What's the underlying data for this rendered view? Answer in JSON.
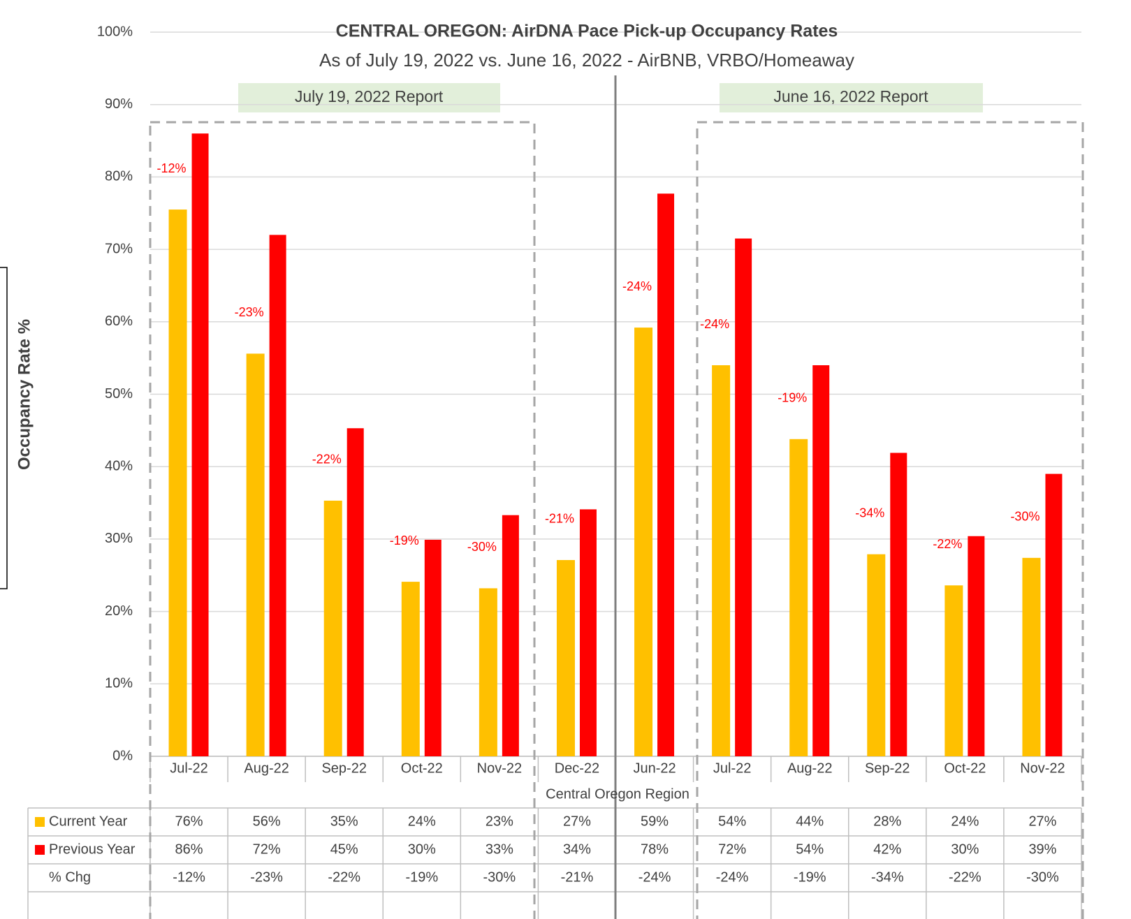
{
  "chart_data": {
    "type": "bar",
    "title": "CENTRAL OREGON: AirDNA Pace Pick-up Occupancy Rates",
    "subtitle": "As of July 19, 2022 vs. June 16, 2022 - AirBNB, VRBO/Homeaway",
    "y_label": "Occupancy Rate %",
    "x_group_label": "Central Oregon Region",
    "annotations": [
      "July 19, 2022 Report",
      "June 16, 2022 Report"
    ],
    "categories": [
      "Jul-22",
      "Aug-22",
      "Sep-22",
      "Oct-22",
      "Nov-22",
      "Dec-22",
      "Jun-22",
      "Jul-22",
      "Aug-22",
      "Sep-22",
      "Oct-22",
      "Nov-22"
    ],
    "series": [
      {
        "name": "Current Year",
        "color": "#ffc000",
        "values": [
          75.5,
          55.6,
          35.3,
          24.1,
          23.2,
          27.1,
          59.2,
          54.0,
          43.8,
          27.9,
          23.6,
          27.4
        ],
        "value_labels": [
          "76%",
          "56%",
          "35%",
          "24%",
          "23%",
          "27%",
          "59%",
          "54%",
          "44%",
          "28%",
          "24%",
          "27%"
        ]
      },
      {
        "name": "Previous Year",
        "color": "#ff0000",
        "values": [
          86.0,
          72.0,
          45.3,
          29.9,
          33.3,
          34.1,
          77.7,
          71.5,
          54.0,
          41.9,
          30.4,
          39.0
        ],
        "value_labels": [
          "86%",
          "72%",
          "45%",
          "30%",
          "33%",
          "34%",
          "78%",
          "72%",
          "54%",
          "42%",
          "30%",
          "39%"
        ]
      }
    ],
    "pct_change": {
      "name": "% Chg",
      "color": "#ff0000",
      "values": [
        -12,
        -23,
        -22,
        -19,
        -30,
        -21,
        -24,
        -24,
        -19,
        -34,
        -22,
        -30
      ],
      "value_labels": [
        "-12%",
        "-23%",
        "-22%",
        "-19%",
        "-30%",
        "-21%",
        "-24%",
        "-24%",
        "-19%",
        "-34%",
        "-22%",
        "-30%"
      ]
    },
    "ylim": [
      0,
      100
    ],
    "yticks": [
      {
        "value": 0,
        "label": "0%"
      },
      {
        "value": 10,
        "label": "10%"
      },
      {
        "value": 20,
        "label": "20%"
      },
      {
        "value": 30,
        "label": "30%"
      },
      {
        "value": 40,
        "label": "40%"
      },
      {
        "value": 50,
        "label": "50%"
      },
      {
        "value": 60,
        "label": "60%"
      },
      {
        "value": 70,
        "label": "70%"
      },
      {
        "value": 80,
        "label": "80%"
      },
      {
        "value": 90,
        "label": "90%"
      },
      {
        "value": 100,
        "label": "100%"
      }
    ],
    "grid": true
  }
}
